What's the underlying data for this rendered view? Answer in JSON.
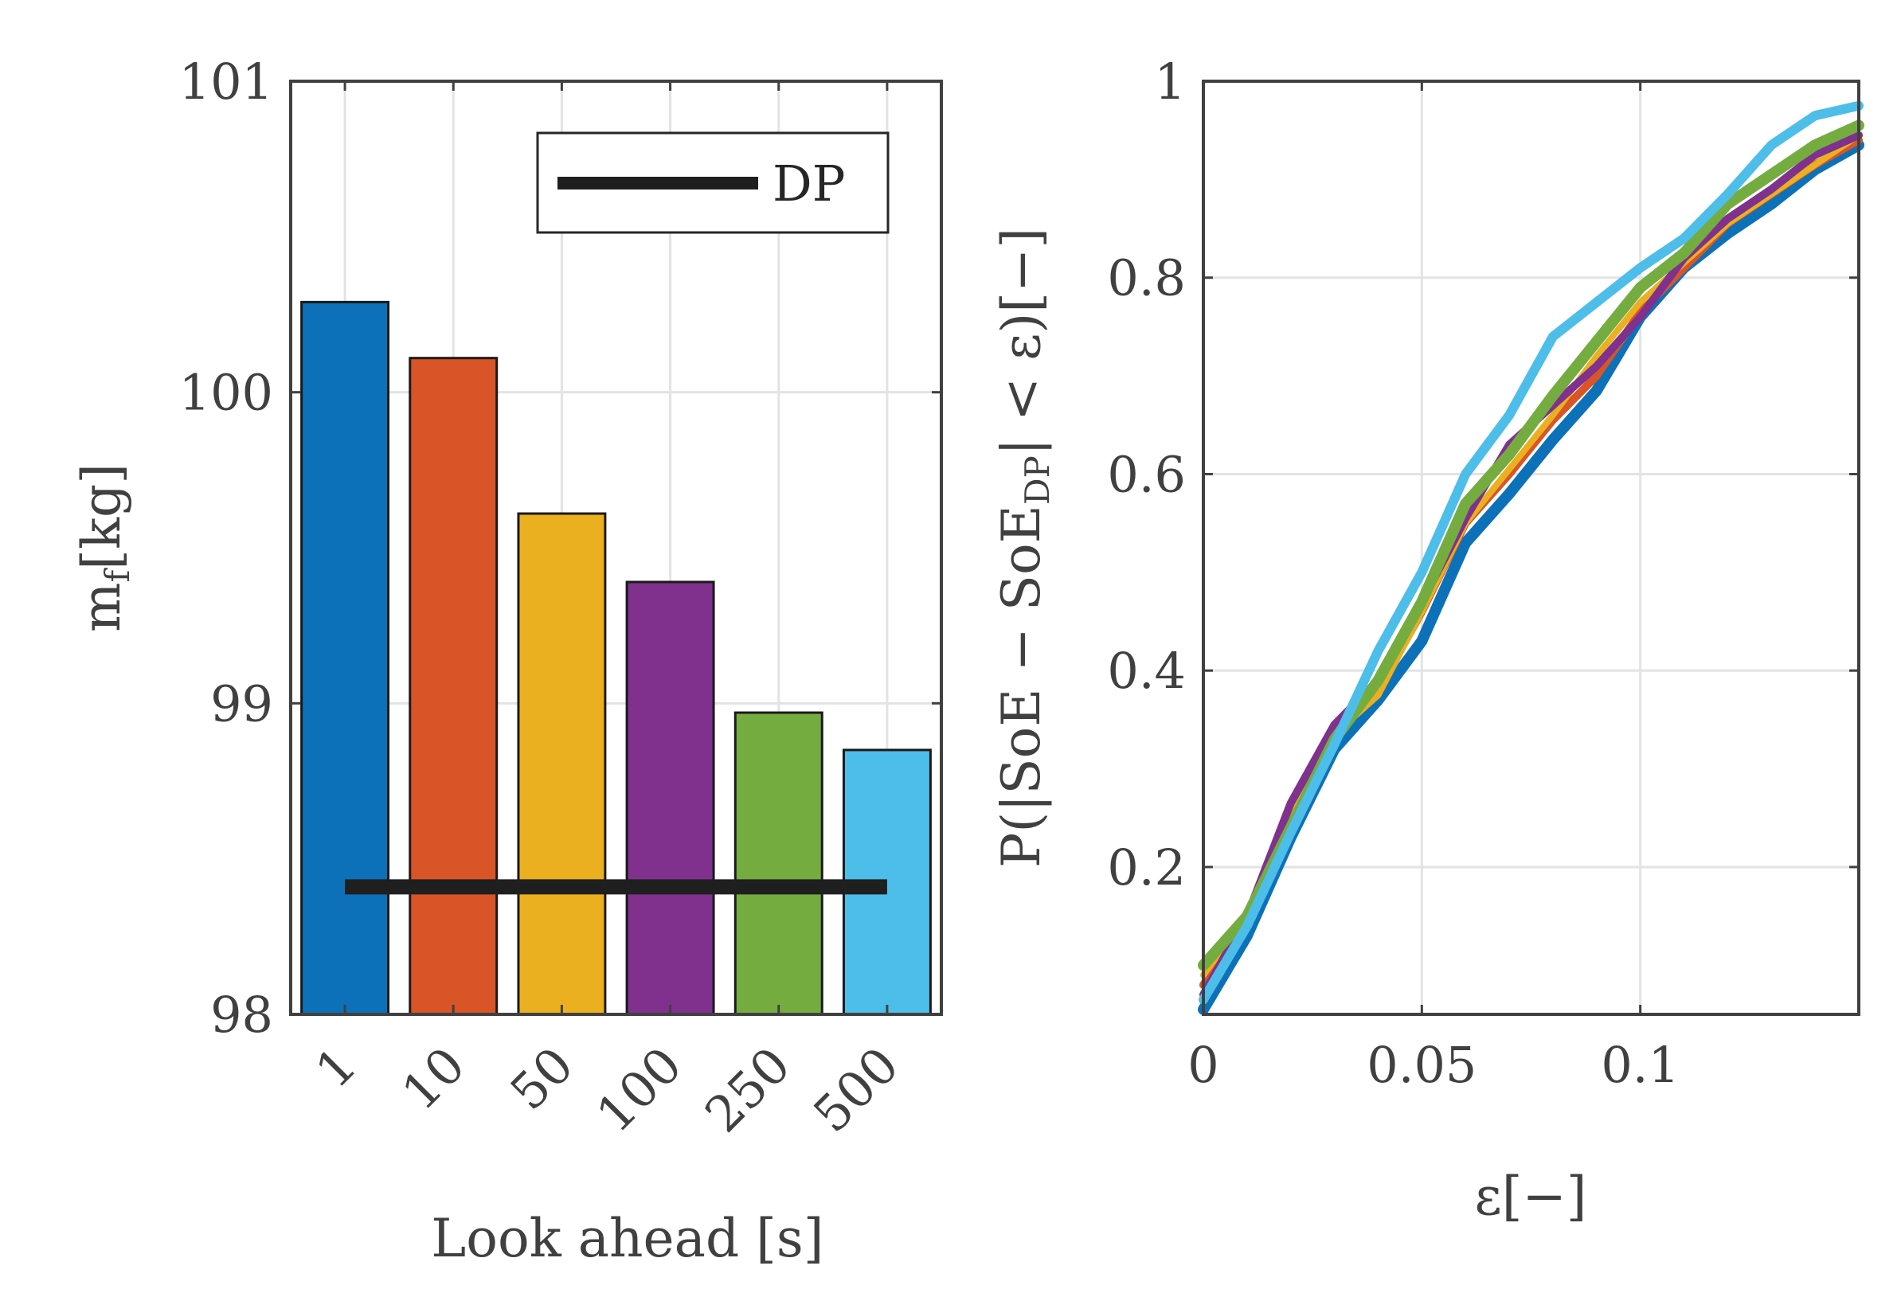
{
  "chart_data": [
    {
      "type": "bar",
      "title": "",
      "xlabel": "Look ahead [s]",
      "ylabel": "m_f [kg]",
      "ylabel_main": "m",
      "ylabel_sub": "f",
      "ylabel_unit": "[kg]",
      "ylim": [
        98,
        101
      ],
      "yticks": [
        "98",
        "99",
        "100",
        "101"
      ],
      "categories": [
        "1",
        "10",
        "50",
        "100",
        "250",
        "500"
      ],
      "values": [
        100.29,
        100.11,
        99.61,
        99.39,
        98.97,
        98.85
      ],
      "bar_colors": [
        "#0c71b8",
        "#d95427",
        "#ebb020",
        "#7f318d",
        "#75ac40",
        "#4dbde9"
      ],
      "reference": {
        "name": "DP",
        "value": 98.41,
        "color": "#1f1f1f"
      },
      "legend": {
        "position": "top-right",
        "entries": [
          "DP"
        ]
      },
      "grid": true
    },
    {
      "type": "line",
      "title": "",
      "xlabel": "ε[−]",
      "ylabel": "P(|SoE − SoE_DP| < ε)[−]",
      "ylabel_parts": {
        "main": "P(|SoE − SoE",
        "sub": "DP",
        "tail": "| < ε)[−]"
      },
      "xlim": [
        0,
        0.15
      ],
      "ylim": [
        0.05,
        1
      ],
      "xticks": [
        0,
        0.05,
        0.1
      ],
      "xtick_labels": [
        "0",
        "0.05",
        "0.1"
      ],
      "yticks": [
        0.2,
        0.4,
        0.6,
        0.8,
        1
      ],
      "ytick_labels": [
        "0.2",
        "0.4",
        "0.6",
        "0.8",
        "1"
      ],
      "grid": true,
      "x": [
        0,
        0.01,
        0.02,
        0.03,
        0.04,
        0.05,
        0.06,
        0.07,
        0.08,
        0.09,
        0.1,
        0.11,
        0.12,
        0.13,
        0.14,
        0.15
      ],
      "series": [
        {
          "name": "1",
          "color": "#0c71b8",
          "values": [
            0.055,
            0.13,
            0.23,
            0.32,
            0.37,
            0.43,
            0.53,
            0.58,
            0.635,
            0.685,
            0.76,
            0.81,
            0.845,
            0.875,
            0.91,
            0.935
          ]
        },
        {
          "name": "10",
          "color": "#d95427",
          "values": [
            0.08,
            0.15,
            0.26,
            0.34,
            0.38,
            0.46,
            0.55,
            0.6,
            0.655,
            0.7,
            0.765,
            0.81,
            0.855,
            0.885,
            0.915,
            0.94
          ]
        },
        {
          "name": "50",
          "color": "#ebb020",
          "values": [
            0.09,
            0.15,
            0.25,
            0.335,
            0.375,
            0.46,
            0.55,
            0.605,
            0.66,
            0.72,
            0.775,
            0.815,
            0.855,
            0.885,
            0.915,
            0.945
          ]
        },
        {
          "name": "100",
          "color": "#7f318d",
          "values": [
            0.07,
            0.15,
            0.265,
            0.345,
            0.39,
            0.47,
            0.555,
            0.63,
            0.67,
            0.71,
            0.76,
            0.82,
            0.86,
            0.89,
            0.925,
            0.945
          ]
        },
        {
          "name": "250",
          "color": "#75ac40",
          "values": [
            0.1,
            0.15,
            0.24,
            0.33,
            0.39,
            0.47,
            0.57,
            0.62,
            0.68,
            0.735,
            0.79,
            0.825,
            0.875,
            0.905,
            0.935,
            0.955
          ]
        },
        {
          "name": "500",
          "color": "#4dbde9",
          "values": [
            0.065,
            0.14,
            0.235,
            0.325,
            0.42,
            0.5,
            0.6,
            0.66,
            0.74,
            0.775,
            0.81,
            0.84,
            0.885,
            0.935,
            0.965,
            0.975
          ]
        }
      ]
    }
  ]
}
